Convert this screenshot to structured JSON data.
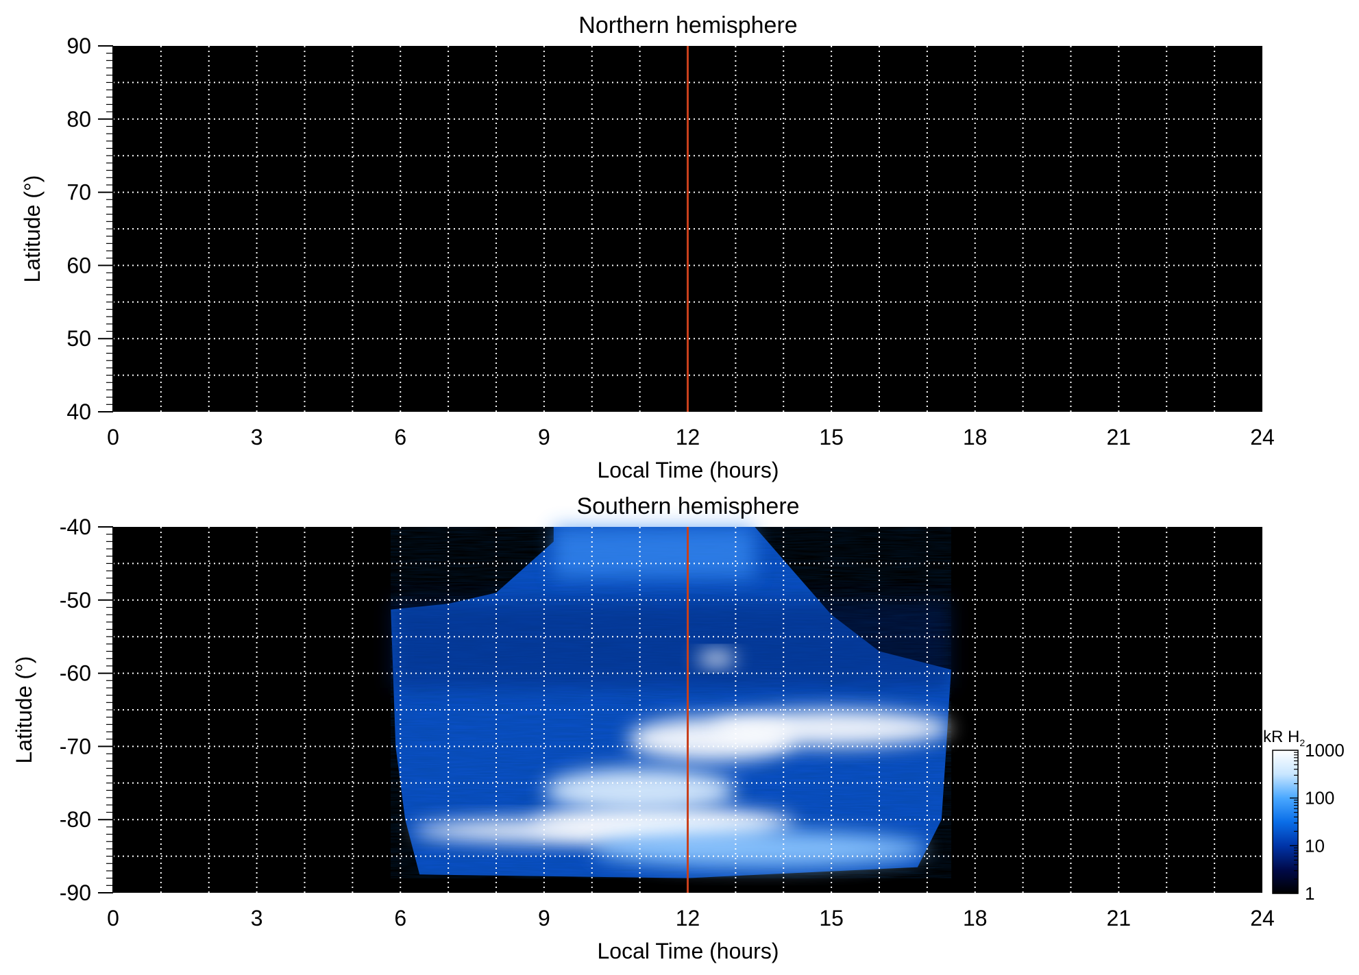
{
  "chart_data": [
    {
      "type": "heatmap",
      "title": "Northern hemisphere",
      "xlabel": "Local Time (hours)",
      "ylabel": "Latitude (°)",
      "xlim": [
        0,
        24
      ],
      "ylim": [
        40,
        90
      ],
      "xticks": [
        "0",
        "3",
        "6",
        "9",
        "12",
        "15",
        "18",
        "21",
        "24"
      ],
      "yticks": [
        "40",
        "50",
        "60",
        "70",
        "80",
        "90"
      ],
      "grid": true,
      "noon_line_x": 12,
      "noon_line_color": "#c8401c",
      "emission_regions": []
    },
    {
      "type": "heatmap",
      "title": "Southern hemisphere",
      "xlabel": "Local Time (hours)",
      "ylabel": "Latitude (°)",
      "xlim": [
        0,
        24
      ],
      "ylim": [
        -90,
        -40
      ],
      "xticks": [
        "0",
        "3",
        "6",
        "9",
        "12",
        "15",
        "18",
        "21",
        "24"
      ],
      "yticks": [
        "-40",
        "-50",
        "-60",
        "-70",
        "-80",
        "-90"
      ],
      "grid": true,
      "noon_line_x": 12,
      "noon_line_color": "#c8401c",
      "observed_coverage": {
        "lt_start": 5.8,
        "lt_end": 17.5,
        "lat_min": -88,
        "cap_top_lt_range": [
          9.2,
          13.4
        ],
        "cap_top_lat": -40,
        "edge_points": [
          [
            5.8,
            -51.3
          ],
          [
            7.0,
            -50.5
          ],
          [
            8.0,
            -49.0
          ],
          [
            9.2,
            -42.0
          ],
          [
            9.2,
            -40
          ],
          [
            13.4,
            -40
          ],
          [
            14.2,
            -46.0
          ],
          [
            15.0,
            -52.0
          ],
          [
            16.0,
            -57.0
          ],
          [
            17.5,
            -59.5
          ],
          [
            17.4,
            -70.0
          ],
          [
            17.3,
            -80.0
          ],
          [
            16.8,
            -86.5
          ],
          [
            12.0,
            -88.0
          ],
          [
            6.4,
            -87.5
          ],
          [
            6.1,
            -80.0
          ],
          [
            5.9,
            -70.0
          ]
        ]
      },
      "emission_regions": [
        {
          "lt": 11.5,
          "lat": -80.5,
          "lt_width": 5.5,
          "lat_height": 4.0,
          "intensity_kR": 1000
        },
        {
          "lt": 10.0,
          "lat": -81.5,
          "lt_width": 7.5,
          "lat_height": 3.5,
          "intensity_kR": 1000
        },
        {
          "lt": 12.5,
          "lat": -69.0,
          "lt_width": 3.5,
          "lat_height": 6.0,
          "intensity_kR": 1000
        },
        {
          "lt": 15.0,
          "lat": -67.5,
          "lt_width": 5.0,
          "lat_height": 5.0,
          "intensity_kR": 1000
        },
        {
          "lt": 12.6,
          "lat": -58.0,
          "lt_width": 0.8,
          "lat_height": 2.0,
          "intensity_kR": 800
        },
        {
          "lt": 11.0,
          "lat": -76.0,
          "lt_width": 4.0,
          "lat_height": 6.0,
          "intensity_kR": 500
        },
        {
          "lt": 13.5,
          "lat": -84.0,
          "lt_width": 7.0,
          "lat_height": 5.0,
          "intensity_kR": 300
        }
      ]
    }
  ],
  "colorbar": {
    "label_main": "kR H",
    "label_sub": "2",
    "scale": "log",
    "range": [
      1,
      1000
    ],
    "ticks": [
      "1000",
      "100",
      "10",
      "1"
    ],
    "colors": [
      "#000000",
      "#000a4a",
      "#0034a8",
      "#0a6ee8",
      "#4aa8ff",
      "#c8e6ff",
      "#ffffff"
    ]
  }
}
